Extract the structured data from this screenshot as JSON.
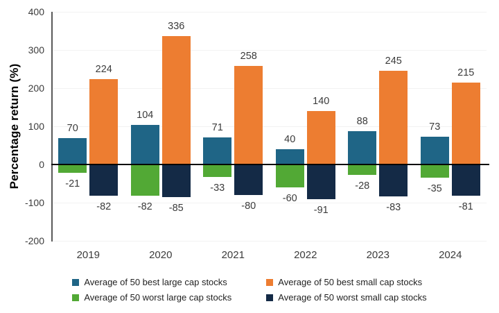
{
  "chart_data": {
    "type": "bar",
    "title": "",
    "xlabel": "",
    "ylabel": "Percentage return (%)",
    "categories": [
      "2019",
      "2020",
      "2021",
      "2022",
      "2023",
      "2024"
    ],
    "series": [
      {
        "name": "Average of 50 best large cap stocks",
        "color": "#1F6586",
        "values": [
          70,
          104,
          71,
          40,
          88,
          73
        ]
      },
      {
        "name": "Average of 50 best small cap stocks",
        "color": "#ED7D31",
        "values": [
          224,
          336,
          258,
          140,
          245,
          215
        ]
      },
      {
        "name": "Average of 50 worst large cap stocks",
        "color": "#52A935",
        "values": [
          -21,
          -82,
          -33,
          -60,
          -28,
          -35
        ]
      },
      {
        "name": "Average of 50 worst small cap stocks",
        "color": "#142A46",
        "values": [
          -82,
          -85,
          -80,
          -91,
          -83,
          -81
        ]
      }
    ],
    "yticks": [
      400,
      300,
      200,
      100,
      0,
      -100,
      -200
    ],
    "ylim": [
      -200,
      400
    ],
    "grid": true,
    "data_labels": true,
    "legend_position": "bottom",
    "colors": {
      "axis_line": "#595959",
      "zero_line": "#000000",
      "gridline": "#F2F2F2",
      "tick_text": "#3B3B3B"
    }
  }
}
